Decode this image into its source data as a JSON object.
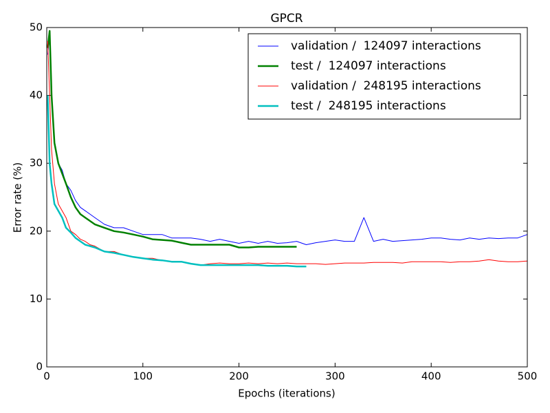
{
  "chart_data": {
    "type": "line",
    "title": "GPCR",
    "xlabel": "Epochs (iterations)",
    "ylabel": "Error rate (%)",
    "x": [
      1,
      3,
      5,
      8,
      12,
      16,
      20,
      25,
      30,
      35,
      40,
      45,
      50,
      60,
      70,
      80,
      90,
      100,
      110,
      120,
      130,
      140,
      150,
      160,
      170,
      180,
      190,
      200,
      210,
      220,
      230,
      240,
      250,
      260,
      270,
      280,
      290,
      300,
      310,
      320,
      330,
      340,
      350,
      360,
      370,
      380,
      390,
      400,
      410,
      420,
      430,
      440,
      450,
      460,
      470,
      480,
      490,
      500
    ],
    "xlim": [
      0,
      500
    ],
    "xticks": [
      0,
      100,
      200,
      300,
      400,
      500
    ],
    "ylim": [
      0,
      50
    ],
    "yticks": [
      0,
      10,
      20,
      30,
      40,
      50
    ],
    "legend": "upper right",
    "series": [
      {
        "name": "validation /  124097 interactions",
        "color": "#0000ff",
        "line_width": 1,
        "values": [
          46,
          49,
          40,
          33,
          30,
          29,
          27,
          26,
          24.5,
          23.5,
          23,
          22.5,
          22,
          21,
          20.5,
          20.5,
          20,
          19.5,
          19.5,
          19.5,
          19,
          19,
          19,
          18.8,
          18.5,
          18.8,
          18.5,
          18.2,
          18.5,
          18.2,
          18.5,
          18.2,
          18.3,
          18.5,
          18,
          18.3,
          18.5,
          18.7,
          18.5,
          18.5,
          22,
          18.5,
          18.8,
          18.5,
          18.6,
          18.7,
          18.8,
          19,
          19,
          18.8,
          18.7,
          19,
          18.8,
          19,
          18.9,
          19,
          19,
          19.5
        ]
      },
      {
        "name": "test /  124097 interactions",
        "color": "#008000",
        "line_width": 2.5,
        "values": [
          47,
          49.5,
          40,
          33,
          30,
          28.5,
          27,
          25,
          23.5,
          22.5,
          22,
          21.5,
          21,
          20.5,
          20,
          19.8,
          19.5,
          19.2,
          18.8,
          18.7,
          18.6,
          18.3,
          18,
          18,
          18,
          18,
          18,
          17.6,
          17.6,
          17.7,
          17.7,
          17.7,
          17.7,
          17.7,
          null,
          null,
          null,
          null,
          null,
          null,
          null,
          null,
          null,
          null,
          null,
          null,
          null,
          null,
          null,
          null,
          null,
          null,
          null,
          null,
          null,
          null,
          null,
          null
        ]
      },
      {
        "name": "validation /  248195 interactions",
        "color": "#ff0000",
        "line_width": 1,
        "values": [
          48,
          40,
          32,
          27,
          24,
          23,
          22,
          20,
          19.5,
          18.8,
          18.5,
          18,
          17.8,
          17,
          17,
          16.5,
          16.2,
          16,
          16,
          15.7,
          15.5,
          15.5,
          15.2,
          15,
          15.2,
          15.3,
          15.2,
          15.2,
          15.3,
          15.2,
          15.3,
          15.2,
          15.3,
          15.2,
          15.2,
          15.2,
          15.1,
          15.2,
          15.3,
          15.3,
          15.3,
          15.4,
          15.4,
          15.4,
          15.3,
          15.5,
          15.5,
          15.5,
          15.5,
          15.4,
          15.5,
          15.5,
          15.6,
          15.8,
          15.6,
          15.5,
          15.5,
          15.6
        ]
      },
      {
        "name": "test /  248195 interactions",
        "color": "#00bfbf",
        "line_width": 2.5,
        "values": [
          40,
          30,
          27,
          24,
          23,
          22,
          20.5,
          19.8,
          19,
          18.5,
          18,
          17.8,
          17.6,
          17,
          16.8,
          16.5,
          16.2,
          16,
          15.8,
          15.7,
          15.5,
          15.5,
          15.2,
          15,
          15,
          15,
          15,
          15,
          15,
          15,
          14.9,
          14.9,
          14.9,
          14.8,
          14.8,
          null,
          null,
          null,
          null,
          null,
          null,
          null,
          null,
          null,
          null,
          null,
          null,
          null,
          null,
          null,
          null,
          null,
          null,
          null,
          null,
          null,
          null,
          null
        ]
      }
    ]
  }
}
